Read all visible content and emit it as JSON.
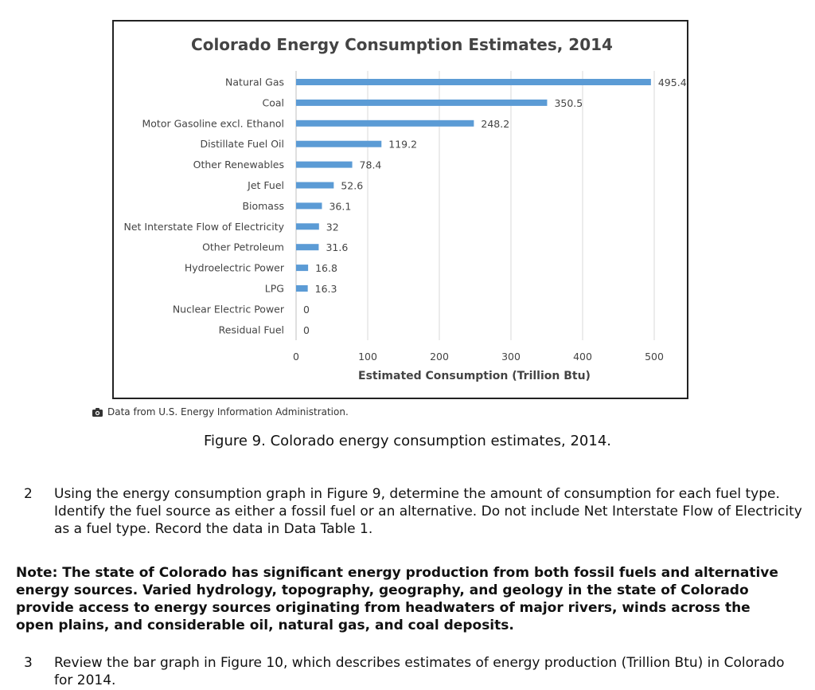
{
  "chart_data": {
    "type": "bar",
    "orientation": "horizontal",
    "title": "Colorado Energy Consumption Estimates, 2014",
    "xlabel": "Estimated Consumption (Trillion Btu)",
    "ylabel": "",
    "xlim": [
      0,
      500
    ],
    "xticks": [
      0,
      100,
      200,
      300,
      400,
      500
    ],
    "grid": true,
    "bar_color": "#5b9bd5",
    "categories": [
      "Natural Gas",
      "Coal",
      "Motor Gasoline excl. Ethanol",
      "Distillate Fuel Oil",
      "Other Renewables",
      "Jet Fuel",
      "Biomass",
      "Net Interstate Flow of Electricity",
      "Other Petroleum",
      "Hydroelectric Power",
      "LPG",
      "Nuclear Electric Power",
      "Residual Fuel"
    ],
    "values": [
      495.4,
      350.5,
      248.2,
      119.2,
      78.4,
      52.6,
      36.1,
      32,
      31.6,
      16.8,
      16.3,
      0,
      0
    ],
    "value_labels": [
      "495.4",
      "350.5",
      "248.2",
      "119.2",
      "78.4",
      "52.6",
      "36.1",
      "32",
      "31.6",
      "16.8",
      "16.3",
      "0",
      "0"
    ]
  },
  "credit": {
    "icon": "camera-icon",
    "text": "Data from U.S. Energy Information Administration."
  },
  "caption": {
    "label": "Figure 9.",
    "text": "Colorado energy consumption estimates, 2014."
  },
  "step2": {
    "number": "2",
    "text_before": "Using the energy consumption graph in Figure 9, determine the amount of consumption for each fuel type. Identify the fuel source as either a fossil fuel or an alternative. Do not include Net Interstate Flow of Electricity as a fuel type. Record the data in ",
    "link": "Data Table 1",
    "text_after": "."
  },
  "note": {
    "text": "Note: The state of Colorado has significant energy production from both fossil fuels and alternative energy sources. Varied hydrology, topography, geography, and geology in the state of Colorado provide access to energy sources originating from headwaters of major rivers, winds across the open plains, and considerable oil, natural gas, and coal deposits."
  },
  "step3": {
    "number": "3",
    "text": "Review the bar graph in Figure 10, which describes estimates of energy production (Trillion Btu) in Colorado for 2014."
  }
}
